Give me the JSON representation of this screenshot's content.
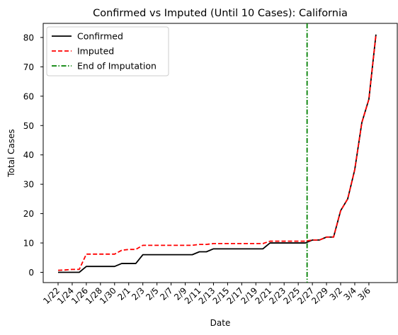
{
  "chart_data": {
    "type": "line",
    "title": "Confirmed vs Imputed (Until 10 Cases): California",
    "xlabel": "Date",
    "ylabel": "Total Cases",
    "x": [
      "1/22",
      "1/23",
      "1/24",
      "1/25",
      "1/26",
      "1/27",
      "1/28",
      "1/29",
      "1/30",
      "1/31",
      "2/1",
      "2/2",
      "2/3",
      "2/4",
      "2/5",
      "2/6",
      "2/7",
      "2/8",
      "2/9",
      "2/10",
      "2/11",
      "2/12",
      "2/13",
      "2/14",
      "2/15",
      "2/16",
      "2/17",
      "2/18",
      "2/19",
      "2/20",
      "2/21",
      "2/22",
      "2/23",
      "2/24",
      "2/25",
      "2/26",
      "2/27",
      "2/28",
      "2/29",
      "3/1",
      "3/2",
      "3/3",
      "3/4",
      "3/5",
      "3/6",
      "3/7"
    ],
    "x_tick_labels": [
      "1/22",
      "1/24",
      "1/26",
      "1/28",
      "1/30",
      "2/1",
      "2/3",
      "2/5",
      "2/7",
      "2/9",
      "2/11",
      "2/13",
      "2/15",
      "2/17",
      "2/19",
      "2/21",
      "2/23",
      "2/25",
      "2/27",
      "2/29",
      "3/2",
      "3/4",
      "3/6"
    ],
    "y_ticks": [
      0,
      10,
      20,
      30,
      40,
      50,
      60,
      70,
      80
    ],
    "ylim": [
      -3.5,
      84.5
    ],
    "series": [
      {
        "name": "Confirmed",
        "color": "#000000",
        "style": "solid",
        "values": [
          0,
          0,
          0,
          0,
          2,
          2,
          2,
          2,
          2,
          3,
          3,
          3,
          6,
          6,
          6,
          6,
          6,
          6,
          6,
          6,
          7,
          7,
          8,
          8,
          8,
          8,
          8,
          8,
          8,
          8,
          10,
          10,
          10,
          10,
          10,
          10,
          11,
          11,
          12,
          12,
          21,
          25,
          35,
          51,
          59,
          81
        ]
      },
      {
        "name": "Imputed",
        "color": "#ff0000",
        "style": "dashed",
        "values": [
          0.7,
          0.8,
          1.0,
          1.0,
          6.2,
          6.2,
          6.2,
          6.2,
          6.2,
          7.5,
          7.8,
          7.8,
          9.2,
          9.2,
          9.2,
          9.2,
          9.2,
          9.2,
          9.2,
          9.2,
          9.5,
          9.5,
          9.8,
          9.8,
          9.8,
          9.8,
          9.8,
          9.8,
          9.8,
          9.8,
          10.6,
          10.6,
          10.6,
          10.6,
          10.6,
          10.6,
          11,
          11,
          12,
          12,
          21,
          25,
          35,
          51,
          59,
          81
        ]
      }
    ],
    "vline": {
      "name": "End of Imputation",
      "x": "2/26",
      "color": "#008000",
      "style": "dashdot"
    },
    "legend": [
      "Confirmed",
      "Imputed",
      "End of Imputation"
    ],
    "legend_position": "upper left",
    "grid": false
  }
}
